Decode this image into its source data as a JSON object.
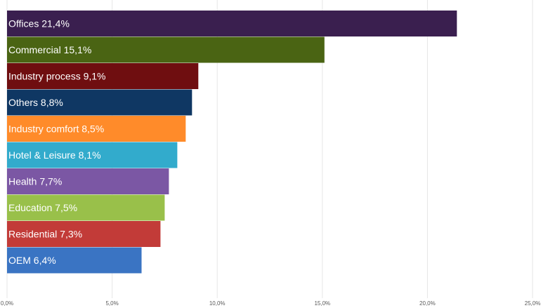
{
  "chart_data": {
    "type": "bar",
    "orientation": "horizontal",
    "categories": [
      "Offices",
      "Commercial",
      "Industry process",
      "Others",
      "Industry comfort",
      "Hotel & Leisure",
      "Health",
      "Education",
      "Residential",
      "OEM"
    ],
    "values": [
      21.4,
      15.1,
      9.1,
      8.8,
      8.5,
      8.1,
      7.7,
      7.5,
      7.3,
      6.4
    ],
    "bar_labels": [
      "Offices 21,4%",
      "Commercial 15,1%",
      "Industry process 9,1%",
      "Others 8,8%",
      "Industry comfort 8,5%",
      "Hotel & Leisure 8,1%",
      "Health 7,7%",
      "Education 7,5%",
      "Residential 7,3%",
      "OEM 6,4%"
    ],
    "colors": [
      "#3a1f4f",
      "#4a6413",
      "#6f0e10",
      "#0f3763",
      "#ff8b2a",
      "#32abcc",
      "#7b57a4",
      "#99c04a",
      "#c23b38",
      "#3a74c3"
    ],
    "xlim": [
      0,
      25
    ],
    "x_ticks": [
      0,
      5,
      10,
      15,
      20,
      25
    ],
    "x_tick_labels": [
      "0,0%",
      "5,0%",
      "10,0%",
      "15,0%",
      "20,0%",
      "25,0%"
    ],
    "grid": true,
    "legend": "none",
    "title": "",
    "xlabel": "",
    "ylabel": ""
  }
}
